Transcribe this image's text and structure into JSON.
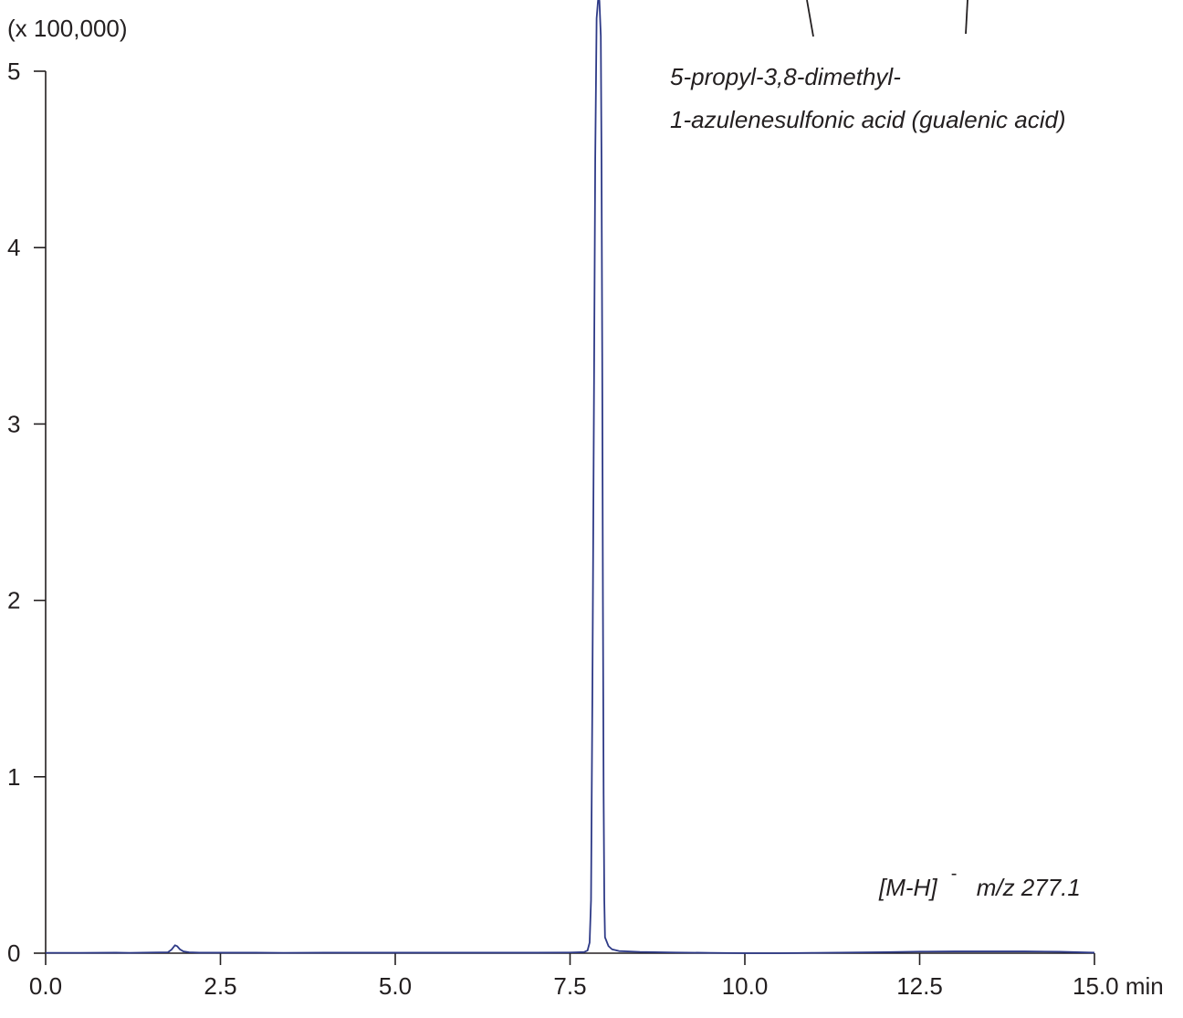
{
  "chart_data": {
    "type": "line",
    "title": "",
    "xlabel": "",
    "ylabel": "",
    "y_multiplier_label": "(x 100,000)",
    "x_unit": "min",
    "xlim": [
      0,
      15
    ],
    "ylim": [
      0,
      5
    ],
    "x_ticks": [
      0,
      2.5,
      5,
      7.5,
      10,
      12.5,
      15
    ],
    "x_tick_labels": [
      "0.0",
      "2.5",
      "5.0",
      "7.5",
      "10.0",
      "12.5",
      "15.0"
    ],
    "y_ticks": [
      0,
      1,
      2,
      3,
      4,
      5
    ],
    "y_tick_labels": [
      "0",
      "1",
      "2",
      "3",
      "4",
      "5"
    ],
    "grid": false,
    "line_color": "#2e3a87",
    "series": [
      {
        "x": [
          0,
          0.5,
          1.0,
          1.2,
          1.5,
          1.75,
          1.8,
          1.85,
          1.88,
          1.92,
          1.97,
          2.05,
          2.2,
          2.5,
          3.0,
          3.4,
          4.0,
          5.0,
          6.0,
          7.0,
          7.5,
          7.7,
          7.75,
          7.78,
          7.8,
          7.82,
          7.84,
          7.86,
          7.88,
          7.9,
          7.92,
          7.94,
          7.95,
          7.96,
          7.97,
          7.98,
          7.99,
          8.0,
          8.05,
          8.1,
          8.2,
          8.5,
          9.0,
          9.5,
          10.0,
          10.5,
          11.0,
          12.0,
          12.5,
          13.0,
          14.0,
          14.5,
          15.0
        ],
        "y": [
          0.002,
          0.002,
          0.003,
          0.002,
          0.004,
          0.005,
          0.02,
          0.045,
          0.04,
          0.022,
          0.01,
          0.005,
          0.003,
          0.003,
          0.003,
          0.002,
          0.003,
          0.003,
          0.003,
          0.003,
          0.004,
          0.006,
          0.015,
          0.06,
          0.3,
          1.5,
          3.0,
          4.5,
          5.3,
          5.4,
          5.4,
          5.2,
          4.5,
          3.4,
          2.0,
          0.9,
          0.3,
          0.09,
          0.04,
          0.022,
          0.012,
          0.007,
          0.004,
          0.002,
          0.0,
          0.0,
          0.002,
          0.006,
          0.009,
          0.01,
          0.01,
          0.008,
          0.003
        ]
      }
    ],
    "annotations": {
      "compound_line1": "5-propyl-3,8-dimethyl-",
      "compound_line2": "1-azulenesulfonic acid (gualenic acid)",
      "ion_prefix": "[M-H]",
      "ion_charge": "-",
      "ion_mass": "m/z 277.1"
    }
  }
}
